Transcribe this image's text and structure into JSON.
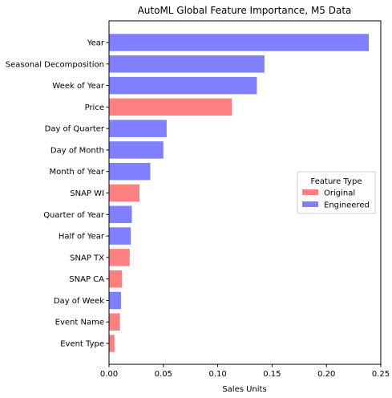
{
  "chart_data": {
    "type": "bar",
    "orientation": "horizontal",
    "title": "AutoML Global Feature Importance, M5 Data",
    "xlabel": "Sales Units",
    "ylabel": "",
    "xlim": [
      0,
      0.25
    ],
    "xticks": [
      "0.00",
      "0.05",
      "0.10",
      "0.15",
      "0.20",
      "0.25"
    ],
    "grid": false,
    "legend": {
      "title": "Feature Type",
      "placement": "center-right",
      "entries": [
        {
          "label": "Original",
          "color": "#ff8080"
        },
        {
          "label": "Engineered",
          "color": "#8080ff"
        }
      ]
    },
    "categories": [
      "Year",
      "Seasonal Decomposition",
      "Week of Year",
      "Price",
      "Day of Quarter",
      "Day of Month",
      "Month of Year",
      "SNAP WI",
      "Quarter of Year",
      "Half of Year",
      "SNAP TX",
      "SNAP CA",
      "Day of Week",
      "Event Name",
      "Event Type"
    ],
    "values": [
      0.239,
      0.143,
      0.136,
      0.113,
      0.053,
      0.05,
      0.038,
      0.028,
      0.021,
      0.02,
      0.019,
      0.012,
      0.011,
      0.01,
      0.005
    ],
    "types": [
      "Engineered",
      "Engineered",
      "Engineered",
      "Original",
      "Engineered",
      "Engineered",
      "Engineered",
      "Original",
      "Engineered",
      "Engineered",
      "Original",
      "Original",
      "Engineered",
      "Original",
      "Original"
    ]
  }
}
